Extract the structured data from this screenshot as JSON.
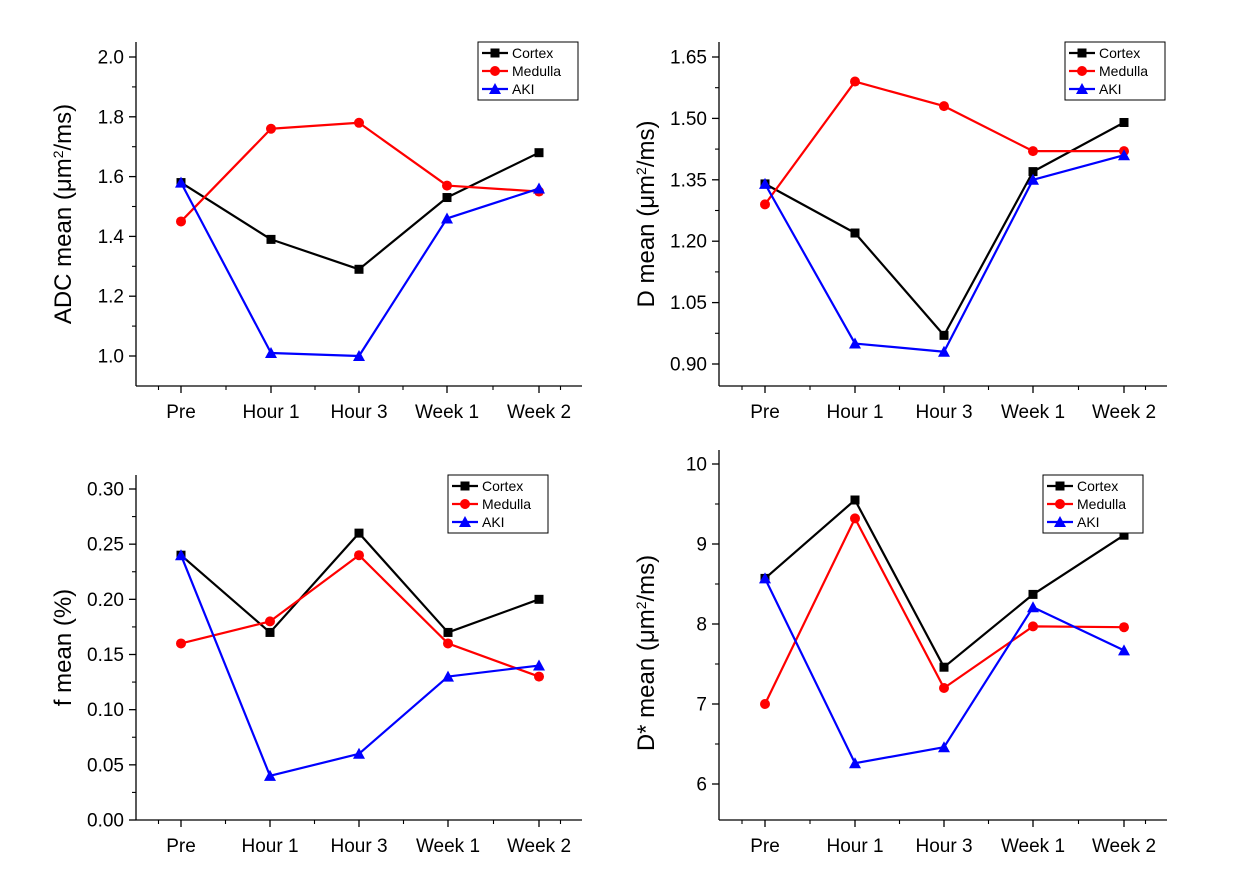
{
  "chart_data": [
    {
      "type": "line",
      "ylabel_prefix": "ADC mean (",
      "ylabel_unit_main": "μm",
      "ylabel_sup": "2",
      "ylabel_suffix": "/ms)",
      "categories": [
        "Pre",
        "Hour 1",
        "Hour 3",
        "Week 1",
        "Week 2"
      ],
      "ylim": [
        0.9,
        2.0
      ],
      "yticks": [
        1.0,
        1.2,
        1.4,
        1.6,
        1.8,
        2.0
      ],
      "ytick_labels": [
        "1.0",
        "1.2",
        "1.4",
        "1.6",
        "1.8",
        "2.0"
      ],
      "legend_position": "top-right",
      "series": [
        {
          "name": "Cortex",
          "color": "#000000",
          "marker": "square",
          "values": [
            1.58,
            1.39,
            1.29,
            1.53,
            1.68
          ]
        },
        {
          "name": "Medulla",
          "color": "#ff0000",
          "marker": "circle",
          "values": [
            1.45,
            1.76,
            1.78,
            1.57,
            1.55
          ]
        },
        {
          "name": "AKI",
          "color": "#0000ff",
          "marker": "triangle",
          "values": [
            1.58,
            1.01,
            1.0,
            1.46,
            1.56
          ]
        }
      ]
    },
    {
      "type": "line",
      "ylabel_prefix": "D mean (",
      "ylabel_unit_main": "μm",
      "ylabel_sup": "2",
      "ylabel_suffix": "/ms)",
      "categories": [
        "Pre",
        "Hour 1",
        "Hour 3",
        "Week 1",
        "Week 2"
      ],
      "ylim": [
        0.84,
        1.65
      ],
      "yticks": [
        0.9,
        1.05,
        1.2,
        1.35,
        1.5,
        1.65
      ],
      "ytick_labels": [
        "0.90",
        "1.05",
        "1.20",
        "1.35",
        "1.50",
        "1.65"
      ],
      "legend_position": "top-right",
      "series": [
        {
          "name": "Cortex",
          "color": "#000000",
          "marker": "square",
          "values": [
            1.34,
            1.22,
            0.97,
            1.37,
            1.49
          ]
        },
        {
          "name": "Medulla",
          "color": "#ff0000",
          "marker": "circle",
          "values": [
            1.29,
            1.59,
            1.53,
            1.42,
            1.42
          ]
        },
        {
          "name": "AKI",
          "color": "#0000ff",
          "marker": "triangle",
          "values": [
            1.34,
            0.95,
            0.93,
            1.35,
            1.41
          ]
        }
      ]
    },
    {
      "type": "line",
      "ylabel_prefix": "f mean (%)",
      "ylabel_unit_main": "",
      "ylabel_sup": "",
      "ylabel_suffix": "",
      "categories": [
        "Pre",
        "Hour 1",
        "Hour 3",
        "Week 1",
        "Week 2"
      ],
      "ylim": [
        0.0,
        0.3
      ],
      "yticks": [
        0.0,
        0.05,
        0.1,
        0.15,
        0.2,
        0.25,
        0.3
      ],
      "ytick_labels": [
        "0.00",
        "0.05",
        "0.10",
        "0.15",
        "0.20",
        "0.25",
        "0.30"
      ],
      "legend_position": "top-right",
      "series": [
        {
          "name": "Cortex",
          "color": "#000000",
          "marker": "square",
          "values": [
            0.24,
            0.17,
            0.26,
            0.17,
            0.2
          ]
        },
        {
          "name": "Medulla",
          "color": "#ff0000",
          "marker": "circle",
          "values": [
            0.16,
            0.18,
            0.24,
            0.16,
            0.13
          ]
        },
        {
          "name": "AKI",
          "color": "#0000ff",
          "marker": "triangle",
          "values": [
            0.24,
            0.04,
            0.06,
            0.13,
            0.14
          ]
        }
      ]
    },
    {
      "type": "line",
      "ylabel_prefix": "D* mean (",
      "ylabel_unit_main": "μm",
      "ylabel_sup": "2",
      "ylabel_suffix": "/ms)",
      "categories": [
        "Pre",
        "Hour 1",
        "Hour 3",
        "Week 1",
        "Week 2"
      ],
      "ylim": [
        5.5,
        10.0
      ],
      "yticks": [
        6,
        7,
        8,
        9,
        10
      ],
      "ytick_labels": [
        "6",
        "7",
        "8",
        "9",
        "10"
      ],
      "legend_position": "top-right",
      "series": [
        {
          "name": "Cortex",
          "color": "#000000",
          "marker": "square",
          "values": [
            8.57,
            9.55,
            7.46,
            8.37,
            9.11
          ]
        },
        {
          "name": "Medulla",
          "color": "#ff0000",
          "marker": "circle",
          "values": [
            7.0,
            9.32,
            7.2,
            7.97,
            7.96
          ]
        },
        {
          "name": "AKI",
          "color": "#0000ff",
          "marker": "triangle",
          "values": [
            8.57,
            6.26,
            6.46,
            8.21,
            7.67
          ]
        }
      ]
    }
  ]
}
